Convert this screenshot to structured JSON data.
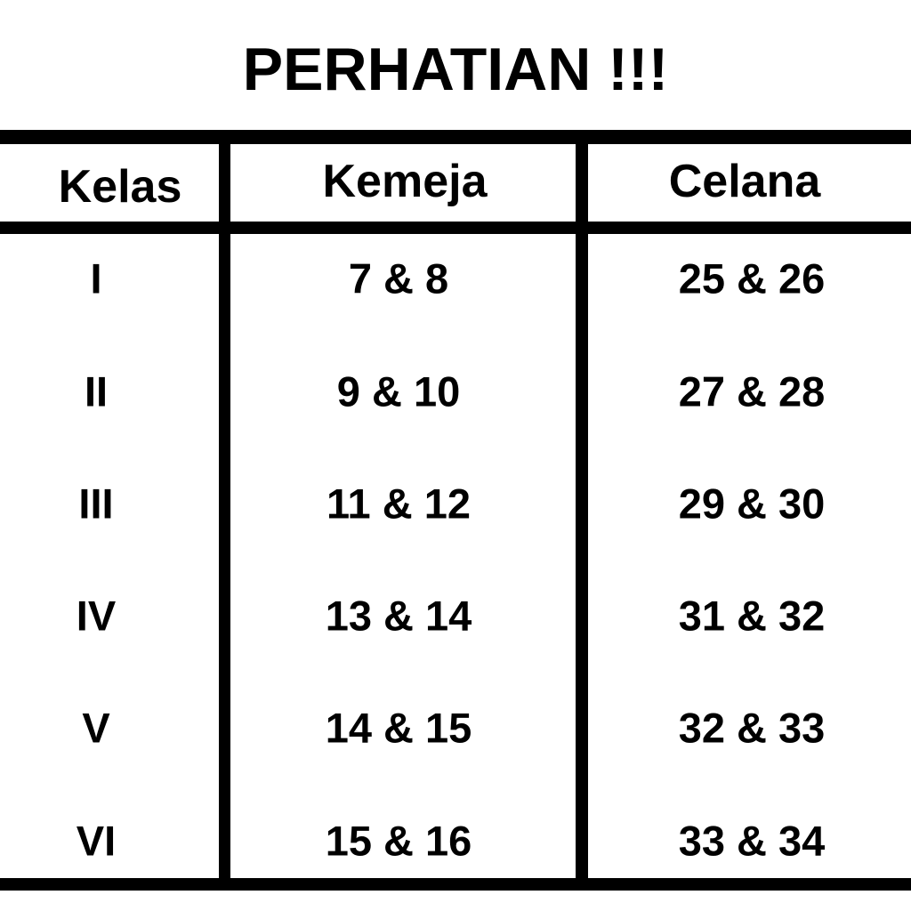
{
  "title": "PERHATIAN !!!",
  "table": {
    "headers": [
      "Kelas",
      "Kemeja",
      "Celana"
    ],
    "rows": [
      [
        "I",
        "7 & 8",
        "25 & 26"
      ],
      [
        "II",
        "9 & 10",
        "27 & 28"
      ],
      [
        "III",
        "11 & 12",
        "29 & 30"
      ],
      [
        "IV",
        "13 & 14",
        "31 & 32"
      ],
      [
        "V",
        "14 & 15",
        "32 & 33"
      ],
      [
        "VI",
        "15 & 16",
        "33 & 34"
      ]
    ]
  }
}
